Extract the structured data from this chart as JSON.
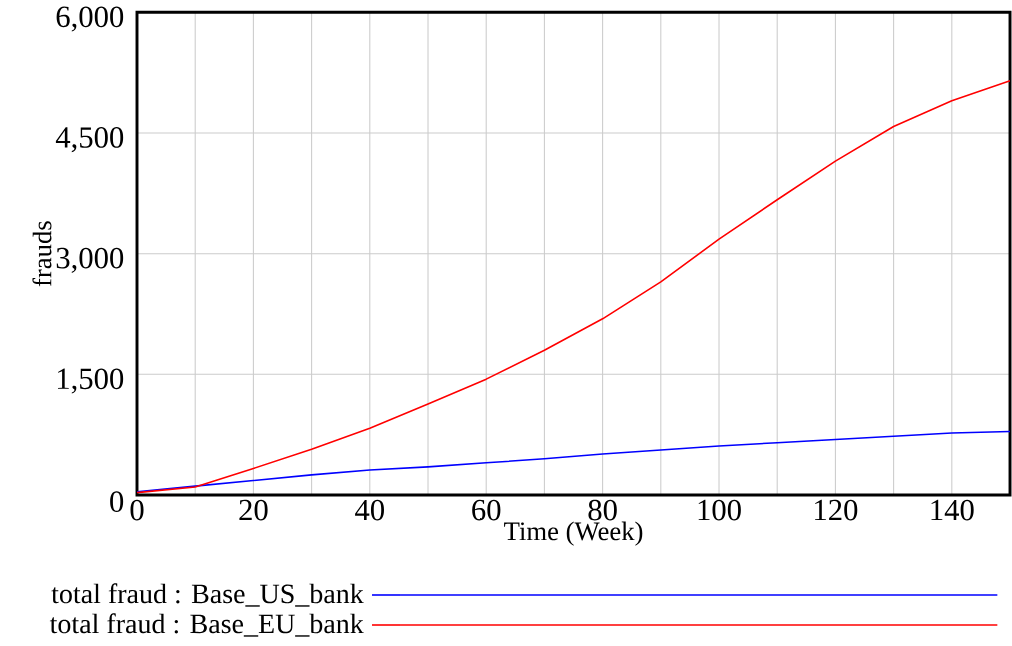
{
  "chart_data": {
    "type": "line",
    "xlabel": "Time (Week)",
    "ylabel": "frauds",
    "x": [
      0,
      10,
      20,
      30,
      40,
      50,
      60,
      70,
      80,
      90,
      100,
      110,
      120,
      130,
      140,
      150
    ],
    "series": [
      {
        "name": "total fraud : Base_US_bank",
        "color": "#0000ff",
        "values": [
          40,
          110,
          180,
          250,
          310,
          350,
          400,
          450,
          510,
          560,
          610,
          650,
          690,
          730,
          770,
          790
        ]
      },
      {
        "name": "total fraud : Base_EU_bank",
        "color": "#ff0000",
        "values": [
          30,
          100,
          330,
          570,
          830,
          1130,
          1440,
          1800,
          2190,
          2650,
          3180,
          3670,
          4150,
          4580,
          4900,
          5150
        ]
      }
    ],
    "xlim": [
      0,
      150
    ],
    "ylim": [
      0,
      6000
    ],
    "xticks": [
      0,
      {
        "value": 10,
        "label": null
      },
      20,
      {
        "value": 30,
        "label": null
      },
      40,
      {
        "value": 50,
        "label": null
      },
      60,
      {
        "value": 70,
        "label": null
      },
      80,
      {
        "value": 90,
        "label": null
      },
      100,
      {
        "value": 110,
        "label": null
      },
      120,
      {
        "value": 130,
        "label": null
      },
      140
    ],
    "yticks": [
      0,
      {
        "value": 1500,
        "label": "1,500"
      },
      {
        "value": 3000,
        "label": "3,000"
      },
      {
        "value": 4500,
        "label": "4,500"
      },
      {
        "value": 6000,
        "label": "6,000"
      }
    ],
    "grid": true,
    "legend": "bottom"
  }
}
